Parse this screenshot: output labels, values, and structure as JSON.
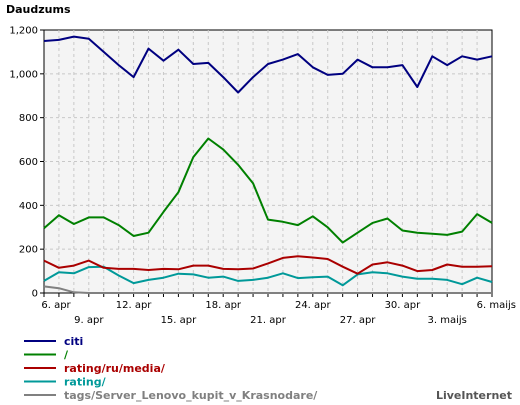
{
  "chart_data": {
    "type": "line",
    "title": "Daudzums",
    "ylim": [
      0,
      1200
    ],
    "y_ticks": [
      0,
      200,
      400,
      600,
      800,
      1000,
      1200
    ],
    "y_tick_labels": [
      "0",
      "200",
      "400",
      "600",
      "800",
      "1,000",
      "1,200"
    ],
    "x": [
      "6. apr",
      "7. apr",
      "8. apr",
      "9. apr",
      "10. apr",
      "11. apr",
      "12. apr",
      "13. apr",
      "14. apr",
      "15. apr",
      "16. apr",
      "17. apr",
      "18. apr",
      "19. apr",
      "20. apr",
      "21. apr",
      "22. apr",
      "23. apr",
      "24. apr",
      "25. apr",
      "26. apr",
      "27. apr",
      "28. apr",
      "29. apr",
      "30. apr",
      "1. maijs",
      "2. maijs",
      "3. maijs",
      "4. maijs",
      "5. maijs",
      "6. maijs"
    ],
    "x_tick_labels_row1": [
      "6. apr",
      "12. apr",
      "18. apr",
      "24. apr",
      "30. apr",
      "6. maijs"
    ],
    "x_tick_labels_row2": [
      "9. apr",
      "15. apr",
      "21. apr",
      "27. apr",
      "3. maijs"
    ],
    "grid": true,
    "legend_position": "bottom-left",
    "series": [
      {
        "name": "citi",
        "color": "#000080",
        "values": [
          1150,
          1155,
          1170,
          1160,
          1100,
          1040,
          985,
          1115,
          1060,
          1110,
          1045,
          1050,
          985,
          915,
          985,
          1045,
          1065,
          1090,
          1030,
          995,
          1000,
          1065,
          1030,
          1030,
          1040,
          940,
          1080,
          1040,
          1080,
          1065,
          1080
        ]
      },
      {
        "name": "/",
        "color": "#008000",
        "values": [
          295,
          355,
          315,
          345,
          345,
          310,
          260,
          275,
          370,
          460,
          620,
          705,
          655,
          585,
          500,
          335,
          325,
          310,
          350,
          300,
          230,
          275,
          320,
          340,
          285,
          275,
          270,
          265,
          280,
          360,
          320
        ]
      },
      {
        "name": "rating/ru/media/",
        "color": "#aa0000",
        "values": [
          148,
          115,
          125,
          148,
          115,
          110,
          110,
          105,
          110,
          108,
          125,
          125,
          110,
          108,
          112,
          135,
          160,
          168,
          162,
          155,
          120,
          88,
          130,
          140,
          125,
          100,
          105,
          130,
          120,
          120,
          122
        ]
      },
      {
        "name": "rating/",
        "color": "#009999",
        "values": [
          55,
          95,
          90,
          118,
          120,
          80,
          45,
          60,
          70,
          88,
          85,
          70,
          75,
          55,
          60,
          70,
          90,
          68,
          72,
          75,
          35,
          85,
          95,
          90,
          75,
          65,
          65,
          60,
          40,
          70,
          50
        ]
      },
      {
        "name": "tags/Server_Lenovo_kupit_v_Krasnodare/",
        "color": "#808080",
        "values": [
          30,
          22,
          3,
          0,
          0,
          0,
          0,
          0,
          0,
          0,
          0,
          0,
          0,
          0,
          0,
          0,
          0,
          0,
          0,
          0,
          0,
          0,
          0,
          0,
          0,
          0,
          0,
          0,
          0,
          0,
          0
        ]
      }
    ],
    "watermark": "LiveInternet"
  }
}
